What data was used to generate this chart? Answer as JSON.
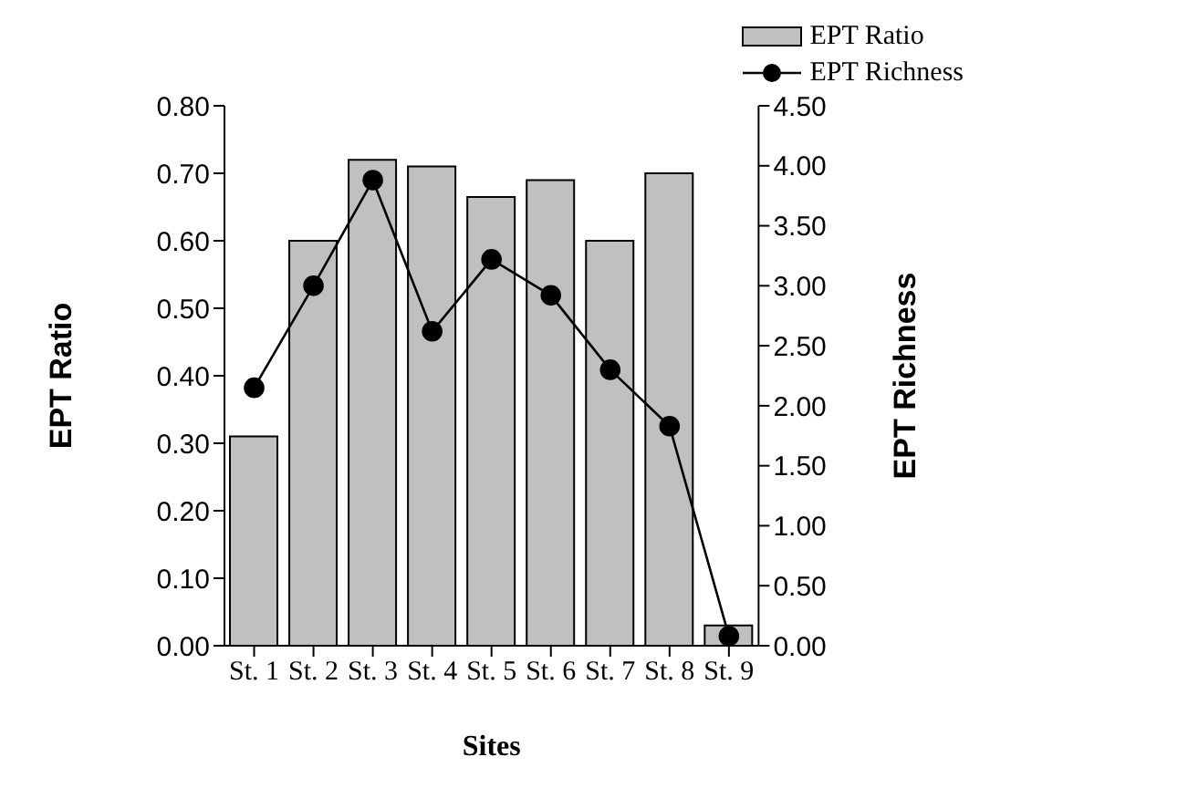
{
  "chart_data": {
    "type": "bar",
    "xlabel": "Sites",
    "ylabel": "EPT Ratio",
    "y2label": "EPT Richness",
    "categories": [
      "St. 1",
      "St. 2",
      "St. 3",
      "St. 4",
      "St. 5",
      "St. 6",
      "St. 7",
      "St. 8",
      "St. 9"
    ],
    "series": [
      {
        "name": "EPT Ratio",
        "color": "#c0c0c0",
        "values": [
          0.31,
          0.6,
          0.72,
          0.71,
          0.665,
          0.69,
          0.6,
          0.7,
          0.03
        ]
      },
      {
        "name": "EPT Richness",
        "type": "line",
        "axis": "y2",
        "color": "#000000",
        "marker": "circle",
        "values": [
          2.15,
          3.0,
          3.88,
          2.62,
          3.22,
          2.92,
          2.3,
          1.83,
          0.08
        ]
      }
    ],
    "ylim": [
      0,
      0.8
    ],
    "yticks": [
      {
        "value": 0,
        "label": "0.00"
      },
      {
        "value": 0.1,
        "label": "0.10"
      },
      {
        "value": 0.2,
        "label": "0.20"
      },
      {
        "value": 0.3,
        "label": "0.30"
      },
      {
        "value": 0.4,
        "label": "0.40"
      },
      {
        "value": 0.5,
        "label": "0.50"
      },
      {
        "value": 0.6,
        "label": "0.60"
      },
      {
        "value": 0.7,
        "label": "0.70"
      },
      {
        "value": 0.8,
        "label": "0.80"
      }
    ],
    "y2lim": [
      0,
      4.5
    ],
    "y2ticks": [
      {
        "value": 0,
        "label": "0.00"
      },
      {
        "value": 0.5,
        "label": "0.50"
      },
      {
        "value": 1,
        "label": "1.00"
      },
      {
        "value": 1.5,
        "label": "1.50"
      },
      {
        "value": 2,
        "label": "2.00"
      },
      {
        "value": 2.5,
        "label": "2.50"
      },
      {
        "value": 3,
        "label": "3.00"
      },
      {
        "value": 3.5,
        "label": "3.50"
      },
      {
        "value": 4,
        "label": "4.00"
      },
      {
        "value": 4.5,
        "label": "4.50"
      }
    ],
    "legend": "top right",
    "grid": false
  }
}
